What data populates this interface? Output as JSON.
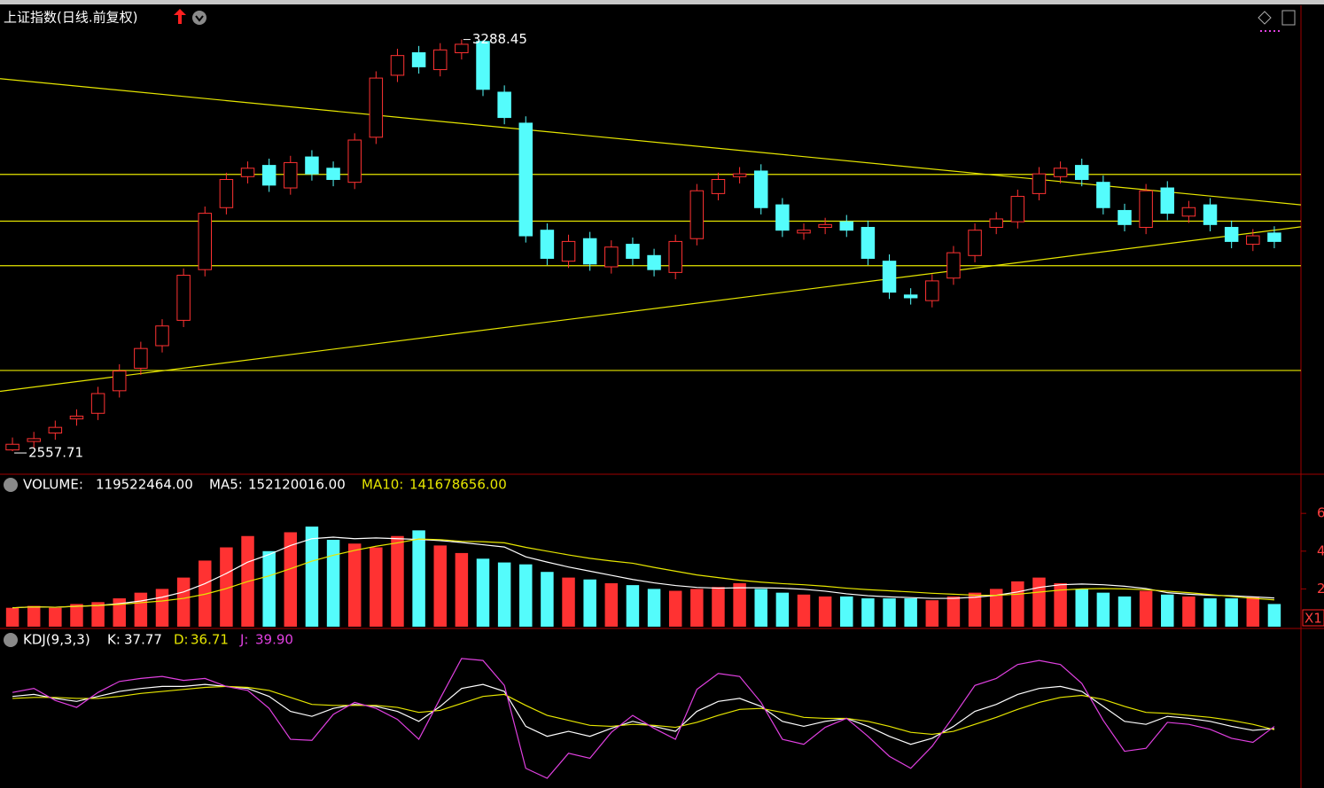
{
  "header": {
    "title": "上证指数(日线.前复权)"
  },
  "main": {
    "ylim": [
      2520,
      3346
    ],
    "up_color": "#ff3232",
    "down_color": "#54fcfc",
    "line_color": "#e6e600",
    "open": [
      2560,
      2575,
      2590,
      2615,
      2625,
      2665,
      2705,
      2745,
      2790,
      2880,
      2990,
      3045,
      3065,
      3025,
      3080,
      3060,
      3035,
      3115,
      3225,
      3265,
      3235,
      3265,
      3285,
      3195,
      3140,
      2950,
      2895,
      2935,
      2885,
      2925,
      2905,
      2875,
      2935,
      3015,
      3045,
      3055,
      2995,
      2945,
      2955,
      2965,
      2955,
      2895,
      2835,
      2825,
      2865,
      2905,
      2955,
      2965,
      3015,
      3045,
      3065,
      3035,
      2985,
      2955,
      3025,
      2975,
      2995,
      2955,
      2925,
      2945
    ],
    "high": [
      2582,
      2592,
      2612,
      2632,
      2672,
      2712,
      2752,
      2792,
      2882,
      2992,
      3052,
      3072,
      3077,
      3082,
      3092,
      3072,
      3122,
      3232,
      3272,
      3277,
      3282,
      3288.45,
      3287,
      3207,
      3152,
      2962,
      2942,
      2947,
      2932,
      2937,
      2917,
      2942,
      3032,
      3052,
      3062,
      3067,
      3007,
      2962,
      2972,
      2977,
      2967,
      2907,
      2847,
      2872,
      2922,
      2962,
      2982,
      3022,
      3062,
      3072,
      3077,
      3047,
      2997,
      3032,
      3037,
      3002,
      3007,
      2967,
      2952,
      2957
    ],
    "low": [
      2557.71,
      2563,
      2578,
      2603,
      2613,
      2653,
      2693,
      2733,
      2778,
      2868,
      2978,
      3033,
      3018,
      3013,
      3038,
      3028,
      3023,
      3103,
      3213,
      3228,
      3223,
      3253,
      3188,
      3138,
      2928,
      2888,
      2883,
      2878,
      2873,
      2888,
      2868,
      2863,
      2923,
      3003,
      3033,
      2978,
      2938,
      2933,
      2943,
      2938,
      2888,
      2828,
      2818,
      2813,
      2853,
      2893,
      2943,
      2953,
      3003,
      3033,
      3028,
      2978,
      2948,
      2943,
      2968,
      2963,
      2948,
      2918,
      2913,
      2918
    ],
    "close": [
      2570,
      2580,
      2600,
      2620,
      2660,
      2700,
      2740,
      2780,
      2870,
      2980,
      3040,
      3060,
      3030,
      3070,
      3050,
      3040,
      3110,
      3220,
      3260,
      3240,
      3270,
      3280,
      3200,
      3150,
      2940,
      2900,
      2930,
      2890,
      2920,
      2900,
      2880,
      2930,
      3020,
      3040,
      3050,
      2990,
      2950,
      2950,
      2960,
      2950,
      2900,
      2840,
      2830,
      2860,
      2910,
      2950,
      2970,
      3010,
      3050,
      3060,
      3040,
      2990,
      2960,
      3020,
      2980,
      2990,
      2960,
      2930,
      2940,
      2930
    ],
    "levels": [
      3049,
      2966,
      2887,
      2701
    ],
    "trendlines": [
      [
        3219,
        2995
      ],
      [
        2664,
        2956
      ]
    ]
  },
  "volume": {
    "label": "VOLUME:",
    "value": "119522464.00",
    "ma5_label": "MA5:",
    "ma5_value": "152120016.00",
    "ma10_label": "MA10:",
    "ma10_value": "141678656.00",
    "ylim": [
      0,
      6.9
    ],
    "yticks": [
      2,
      4,
      6
    ],
    "unit_label": "X1",
    "ma5_color": "#ffffff",
    "ma10_color": "#e6e600",
    "values": [
      1.0,
      1.1,
      1.0,
      1.2,
      1.3,
      1.5,
      1.8,
      2.0,
      2.6,
      3.5,
      4.2,
      4.8,
      4.0,
      5.0,
      5.3,
      4.6,
      4.4,
      4.2,
      4.8,
      5.1,
      4.3,
      3.9,
      3.6,
      3.4,
      3.3,
      2.9,
      2.6,
      2.5,
      2.3,
      2.2,
      2.0,
      1.9,
      2.0,
      2.1,
      2.3,
      2.0,
      1.8,
      1.7,
      1.6,
      1.6,
      1.5,
      1.5,
      1.5,
      1.4,
      1.6,
      1.8,
      2.0,
      2.4,
      2.6,
      2.3,
      2.0,
      1.8,
      1.6,
      1.9,
      1.7,
      1.6,
      1.5,
      1.5,
      1.6,
      1.2
    ],
    "ma5": [
      1.0,
      1.05,
      1.03,
      1.08,
      1.12,
      1.22,
      1.36,
      1.56,
      1.84,
      2.28,
      2.82,
      3.42,
      3.82,
      4.3,
      4.66,
      4.74,
      4.66,
      4.7,
      4.66,
      4.62,
      4.56,
      4.46,
      4.34,
      4.22,
      3.7,
      3.42,
      3.16,
      2.94,
      2.72,
      2.5,
      2.32,
      2.18,
      2.08,
      2.04,
      2.06,
      2.06,
      2.04,
      1.98,
      1.88,
      1.74,
      1.64,
      1.58,
      1.54,
      1.5,
      1.5,
      1.56,
      1.66,
      1.84,
      2.08,
      2.22,
      2.26,
      2.22,
      2.14,
      2.02,
      1.8,
      1.72,
      1.66,
      1.64,
      1.58,
      1.52
    ],
    "ma10": [
      1.0,
      1.05,
      1.03,
      1.08,
      1.12,
      1.18,
      1.27,
      1.36,
      1.5,
      1.72,
      2.02,
      2.39,
      2.69,
      3.07,
      3.47,
      3.78,
      4.04,
      4.26,
      4.44,
      4.64,
      4.61,
      4.52,
      4.5,
      4.44,
      4.2,
      4.0,
      3.8,
      3.62,
      3.48,
      3.36,
      3.14,
      2.94,
      2.74,
      2.6,
      2.46,
      2.36,
      2.28,
      2.22,
      2.14,
      2.04,
      1.96,
      1.9,
      1.84,
      1.77,
      1.72,
      1.67,
      1.66,
      1.72,
      1.83,
      1.94,
      2.0,
      2.02,
      2.0,
      1.96,
      1.88,
      1.8,
      1.7,
      1.6,
      1.5,
      1.42
    ]
  },
  "kdj": {
    "label": "KDJ(9,3,3)",
    "k_label": "K:",
    "k_value": "37.77",
    "d_label": "D:",
    "d_value": "36.71",
    "j_label": "J:",
    "j_value": "39.90",
    "ylim": [
      -20,
      115
    ],
    "series": [
      {
        "name": "K",
        "color": "#ffffff",
        "values": [
          70,
          72,
          68,
          65,
          70,
          75,
          78,
          80,
          80,
          82,
          80,
          78,
          70,
          55,
          50,
          58,
          62,
          60,
          55,
          45,
          60,
          78,
          82,
          75,
          40,
          30,
          35,
          30,
          38,
          45,
          40,
          35,
          55,
          65,
          68,
          60,
          45,
          40,
          45,
          48,
          40,
          30,
          22,
          28,
          40,
          55,
          62,
          72,
          78,
          80,
          75,
          60,
          45,
          42,
          50,
          48,
          45,
          40,
          36,
          37.77
        ]
      },
      {
        "name": "D",
        "color": "#e6e600",
        "values": [
          68,
          69,
          69,
          68,
          68,
          70,
          73,
          75,
          77,
          79,
          80,
          79,
          76,
          69,
          62,
          61,
          61,
          61,
          59,
          54,
          56,
          63,
          70,
          72,
          61,
          51,
          46,
          41,
          40,
          42,
          41,
          39,
          44,
          51,
          57,
          58,
          54,
          49,
          48,
          48,
          45,
          40,
          34,
          32,
          35,
          42,
          49,
          57,
          64,
          69,
          71,
          67,
          60,
          54,
          53,
          51,
          49,
          46,
          42,
          36.71
        ]
      },
      {
        "name": "J",
        "color": "#e040e0",
        "values": [
          74,
          78,
          66,
          59,
          74,
          85,
          88,
          90,
          86,
          88,
          80,
          76,
          58,
          27,
          26,
          52,
          64,
          58,
          47,
          27,
          68,
          108,
          106,
          81,
          -2,
          -12,
          13,
          8,
          34,
          51,
          38,
          27,
          77,
          93,
          90,
          64,
          27,
          22,
          39,
          48,
          30,
          10,
          -2,
          20,
          50,
          81,
          88,
          102,
          106,
          102,
          83,
          46,
          15,
          18,
          44,
          42,
          37,
          28,
          24,
          39.9
        ]
      }
    ]
  }
}
